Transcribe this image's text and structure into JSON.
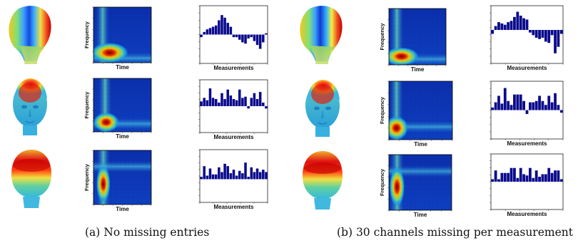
{
  "captions": {
    "a": "(a) No missing entries",
    "b": "(b) 30 channels missing per measurement"
  },
  "labels": {
    "frequency": "Frequency",
    "time": "Time",
    "measurements": "Measurements"
  },
  "colors": {
    "bar": "#0a0a8c",
    "colormap": "jet"
  },
  "chart_data": [
    {
      "panel": "a",
      "row": 1,
      "type": "bar",
      "xlabel": "Measurements",
      "values": [
        -0.1,
        0.1,
        0.2,
        0.25,
        0.3,
        0.35,
        0.55,
        0.75,
        0.65,
        0.45,
        0.3,
        -0.1,
        -0.1,
        -0.2,
        -0.3,
        -0.35,
        -0.15,
        -0.1,
        -0.25,
        -0.4,
        -0.55,
        -0.3,
        0.05
      ]
    },
    {
      "panel": "a",
      "row": 2,
      "type": "bar",
      "xlabel": "Measurements",
      "values": [
        0.2,
        0.35,
        0.25,
        0.75,
        0.35,
        0.3,
        0.15,
        0.55,
        0.3,
        0.7,
        0.45,
        0.3,
        0.25,
        0.7,
        0.35,
        0.4,
        -0.1,
        0.35,
        0.55,
        0.3,
        0.6,
        0.15,
        -0.1
      ]
    },
    {
      "panel": "a",
      "row": 3,
      "type": "bar",
      "xlabel": "Measurements",
      "values": [
        0.1,
        0.55,
        0.15,
        0.45,
        0.2,
        0.2,
        0.5,
        0.3,
        0.65,
        0.55,
        0.25,
        0.4,
        0.15,
        0.35,
        0.25,
        0.7,
        0.1,
        0.5,
        0.3,
        0.45,
        0.3,
        0.4,
        0.3
      ]
    },
    {
      "panel": "b",
      "row": 1,
      "type": "bar",
      "xlabel": "Measurements",
      "values": [
        -0.15,
        0.15,
        0.3,
        0.25,
        0.2,
        0.3,
        0.35,
        0.5,
        0.7,
        0.55,
        0.45,
        0.4,
        -0.1,
        -0.2,
        -0.3,
        -0.35,
        -0.3,
        -0.45,
        -0.5,
        -0.2,
        -0.9,
        -0.65,
        -0.15
      ]
    },
    {
      "panel": "b",
      "row": 2,
      "type": "bar",
      "xlabel": "Measurements",
      "values": [
        0.1,
        0.3,
        0.55,
        0.25,
        0.85,
        0.35,
        0.2,
        0.6,
        0.6,
        0.6,
        0.35,
        -0.15,
        0.3,
        0.3,
        0.35,
        0.55,
        0.35,
        0.2,
        0.55,
        0.3,
        0.65,
        0.2,
        -0.1
      ]
    },
    {
      "panel": "b",
      "row": 3,
      "type": "bar",
      "xlabel": "Measurements",
      "values": [
        0.1,
        0.45,
        0.1,
        0.35,
        0.35,
        0.35,
        0.55,
        0.55,
        0.15,
        0.55,
        0.3,
        0.25,
        0.55,
        0.15,
        0.45,
        0.2,
        0.3,
        0.3,
        0.55,
        0.35,
        0.45,
        0.45,
        0.1
      ]
    }
  ],
  "heatmaps": [
    {
      "panel": "a",
      "row": 1,
      "ylabel": "Frequency",
      "xlabel": "Time"
    },
    {
      "panel": "a",
      "row": 2,
      "ylabel": "Frequency",
      "xlabel": "Time"
    },
    {
      "panel": "a",
      "row": 3,
      "ylabel": "Frequency",
      "xlabel": "Time"
    },
    {
      "panel": "b",
      "row": 1,
      "ylabel": "Frequency",
      "xlabel": "Time"
    },
    {
      "panel": "b",
      "row": 2,
      "ylabel": "Frequency",
      "xlabel": "Time"
    },
    {
      "panel": "b",
      "row": 3,
      "ylabel": "Frequency",
      "xlabel": "Time"
    }
  ],
  "scalp_maps": [
    {
      "panel": "a",
      "row": 1,
      "view": "side"
    },
    {
      "panel": "a",
      "row": 2,
      "view": "front"
    },
    {
      "panel": "a",
      "row": 3,
      "view": "back"
    },
    {
      "panel": "b",
      "row": 1,
      "view": "side"
    },
    {
      "panel": "b",
      "row": 2,
      "view": "front"
    },
    {
      "panel": "b",
      "row": 3,
      "view": "back"
    }
  ]
}
